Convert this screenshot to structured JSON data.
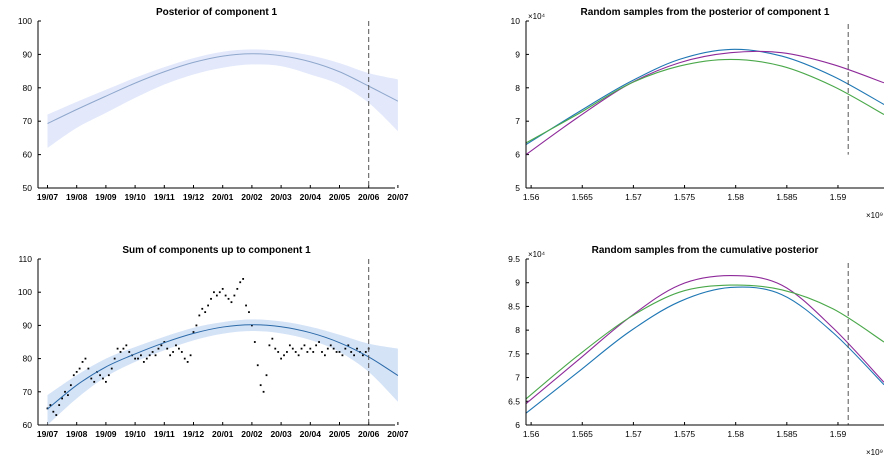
{
  "chart_data": [
    {
      "id": "p1",
      "type": "line",
      "title": "Posterior of component 1",
      "ylim": [
        50,
        100
      ],
      "yticks": [
        "50",
        "60",
        "70",
        "80",
        "90",
        "100"
      ],
      "xticks": [
        "19/07",
        "19/08",
        "19/09",
        "19/10",
        "19/11",
        "19/12",
        "20/01",
        "20/02",
        "20/03",
        "20/04",
        "20/05",
        "20/06",
        "20/07"
      ],
      "vline_at": "20/06",
      "series": [
        {
          "role": "mean",
          "color": "#8fa7cc",
          "x": [
            0,
            1,
            2,
            3,
            4,
            5,
            6,
            7,
            8,
            9,
            10,
            11,
            12
          ],
          "y": [
            69.3,
            73.5,
            77.5,
            81.4,
            84.8,
            87.6,
            89.5,
            90.2,
            89.6,
            87.8,
            84.8,
            80.5,
            76.0
          ]
        },
        {
          "role": "band-upper",
          "color": "#e3e9fb",
          "y": [
            72.0,
            75.8,
            79.4,
            83.0,
            86.2,
            88.9,
            90.8,
            91.5,
            91.0,
            89.7,
            87.4,
            84.4,
            82.5
          ]
        },
        {
          "role": "band-lower",
          "color": "#e3e9fb",
          "y": [
            62.0,
            68.0,
            72.5,
            77.0,
            81.0,
            84.0,
            86.0,
            87.0,
            86.5,
            84.0,
            81.0,
            75.5,
            67.0
          ]
        }
      ]
    },
    {
      "id": "p2",
      "type": "line",
      "title": "Random samples from the posterior of component 1",
      "y_multiplier": "×10⁴",
      "x_multiplier": "×10⁹",
      "ylim": [
        5,
        10
      ],
      "yticks": [
        "5",
        "6",
        "7",
        "8",
        "9",
        "10"
      ],
      "xlim": [
        1.5595,
        1.5945
      ],
      "xticks": [
        "1.56",
        "1.565",
        "1.57",
        "1.575",
        "1.58",
        "1.585",
        "1.59"
      ],
      "vline_x": 1.591,
      "series": [
        {
          "color": "#1f77b4",
          "x": [
            1.5595,
            1.5645,
            1.5695,
            1.5745,
            1.5795,
            1.5845,
            1.5895,
            1.5945
          ],
          "y": [
            6.3,
            7.25,
            8.15,
            8.85,
            9.15,
            8.95,
            8.35,
            7.5
          ]
        },
        {
          "color": "#8e2a9a",
          "x": [
            1.5595,
            1.5645,
            1.5695,
            1.5745,
            1.5795,
            1.5845,
            1.5895,
            1.5945
          ],
          "y": [
            6.0,
            7.1,
            8.1,
            8.75,
            9.05,
            9.05,
            8.7,
            8.15
          ]
        },
        {
          "color": "#4aa84a",
          "x": [
            1.5595,
            1.5645,
            1.5695,
            1.5745,
            1.5795,
            1.5845,
            1.5895,
            1.5945
          ],
          "y": [
            6.35,
            7.2,
            8.1,
            8.65,
            8.85,
            8.65,
            8.05,
            7.2
          ]
        }
      ]
    },
    {
      "id": "p3",
      "type": "line",
      "title": "Sum of components up to component 1",
      "ylim": [
        60,
        110
      ],
      "yticks": [
        "60",
        "70",
        "80",
        "90",
        "100",
        "110"
      ],
      "xticks": [
        "19/07",
        "19/08",
        "19/09",
        "19/10",
        "19/11",
        "19/12",
        "20/01",
        "20/02",
        "20/03",
        "20/04",
        "20/05",
        "20/06",
        "20/07"
      ],
      "vline_at": "20/06",
      "series": [
        {
          "role": "mean",
          "color": "#2b6aa8",
          "x": [
            0,
            1,
            2,
            3,
            4,
            5,
            6,
            7,
            8,
            9,
            10,
            11,
            12
          ],
          "y": [
            64.8,
            72.0,
            77.5,
            81.4,
            84.8,
            87.6,
            89.5,
            90.2,
            89.6,
            87.8,
            84.8,
            80.5,
            74.9
          ]
        },
        {
          "role": "band-upper",
          "color": "#d5e3f7",
          "y": [
            69.0,
            75.0,
            80.0,
            83.5,
            86.6,
            89.3,
            91.0,
            91.8,
            91.2,
            89.6,
            87.2,
            84.5,
            83.0
          ]
        },
        {
          "role": "band-lower",
          "color": "#d5e3f7",
          "y": [
            60.0,
            68.0,
            74.5,
            79.0,
            82.5,
            85.5,
            87.5,
            88.3,
            87.6,
            85.6,
            82.0,
            76.0,
            67.0
          ]
        },
        {
          "role": "observations",
          "color": "#000000",
          "x": [
            0.0,
            0.1,
            0.2,
            0.3,
            0.4,
            0.5,
            0.6,
            0.7,
            0.8,
            0.9,
            1.0,
            1.1,
            1.2,
            1.3,
            1.4,
            1.5,
            1.6,
            1.7,
            1.8,
            1.9,
            2.0,
            2.1,
            2.2,
            2.3,
            2.4,
            2.5,
            2.6,
            2.7,
            2.8,
            2.9,
            3.0,
            3.1,
            3.2,
            3.3,
            3.4,
            3.5,
            3.6,
            3.7,
            3.8,
            3.9,
            4.0,
            4.1,
            4.2,
            4.3,
            4.4,
            4.5,
            4.6,
            4.7,
            4.8,
            4.9,
            5.0,
            5.1,
            5.2,
            5.3,
            5.4,
            5.5,
            5.6,
            5.7,
            5.8,
            5.9,
            6.0,
            6.1,
            6.2,
            6.3,
            6.4,
            6.5,
            6.6,
            6.7,
            6.8,
            6.9,
            7.0,
            7.1,
            7.2,
            7.3,
            7.4,
            7.5,
            7.6,
            7.7,
            7.8,
            7.9,
            8.0,
            8.1,
            8.2,
            8.3,
            8.4,
            8.5,
            8.6,
            8.7,
            8.8,
            8.9,
            9.0,
            9.1,
            9.2,
            9.3,
            9.4,
            9.5,
            9.6,
            9.7,
            9.8,
            9.9,
            10.0,
            10.1,
            10.2,
            10.3,
            10.4,
            10.5,
            10.6,
            10.7,
            10.8,
            10.9,
            11.0
          ],
          "y": [
            65,
            66,
            64,
            63,
            66,
            68,
            70,
            69,
            72,
            75,
            76,
            77,
            79,
            80,
            77,
            74,
            73,
            76,
            75,
            74,
            73,
            75,
            77,
            80,
            83,
            82,
            83,
            84,
            82,
            81,
            80,
            80,
            81,
            79,
            80,
            81,
            82,
            81,
            83,
            84,
            85,
            83,
            81,
            82,
            84,
            83,
            82,
            80,
            79,
            81,
            88,
            90,
            93,
            95,
            94,
            96,
            98,
            100,
            99,
            100,
            101,
            99,
            98,
            97,
            99,
            101,
            103,
            104,
            96,
            94,
            90,
            85,
            78,
            72,
            70,
            75,
            84,
            86,
            83,
            82,
            80,
            81,
            82,
            84,
            83,
            82,
            81,
            83,
            84,
            82,
            83,
            82,
            84,
            85,
            82,
            81,
            83,
            84,
            83,
            82,
            82,
            81,
            83,
            84,
            82,
            81,
            83,
            82,
            81,
            82,
            83
          ]
        }
      ]
    },
    {
      "id": "p4",
      "type": "line",
      "title": "Random samples from the cumulative posterior",
      "y_multiplier": "×10⁴",
      "x_multiplier": "×10⁹",
      "ylim": [
        6,
        9.5
      ],
      "yticks": [
        "6",
        "6.5",
        "7",
        "7.5",
        "8",
        "8.5",
        "9",
        "9.5"
      ],
      "xlim": [
        1.5595,
        1.5945
      ],
      "xticks": [
        "1.56",
        "1.565",
        "1.57",
        "1.575",
        "1.58",
        "1.585",
        "1.59"
      ],
      "vline_x": 1.591,
      "series": [
        {
          "color": "#1f77b4",
          "x": [
            1.5595,
            1.5645,
            1.5695,
            1.5745,
            1.5795,
            1.5845,
            1.5895,
            1.5945
          ],
          "y": [
            6.25,
            7.1,
            7.95,
            8.6,
            8.9,
            8.75,
            7.95,
            6.85
          ]
        },
        {
          "color": "#8e2a9a",
          "x": [
            1.5595,
            1.5645,
            1.5695,
            1.5745,
            1.5795,
            1.5845,
            1.5895,
            1.5945
          ],
          "y": [
            6.45,
            7.35,
            8.25,
            8.95,
            9.15,
            8.95,
            8.05,
            6.9
          ]
        },
        {
          "color": "#4aa84a",
          "x": [
            1.5595,
            1.5645,
            1.5695,
            1.5745,
            1.5795,
            1.5845,
            1.5895,
            1.5945
          ],
          "y": [
            6.55,
            7.45,
            8.25,
            8.8,
            8.95,
            8.85,
            8.45,
            7.75
          ]
        }
      ]
    }
  ]
}
